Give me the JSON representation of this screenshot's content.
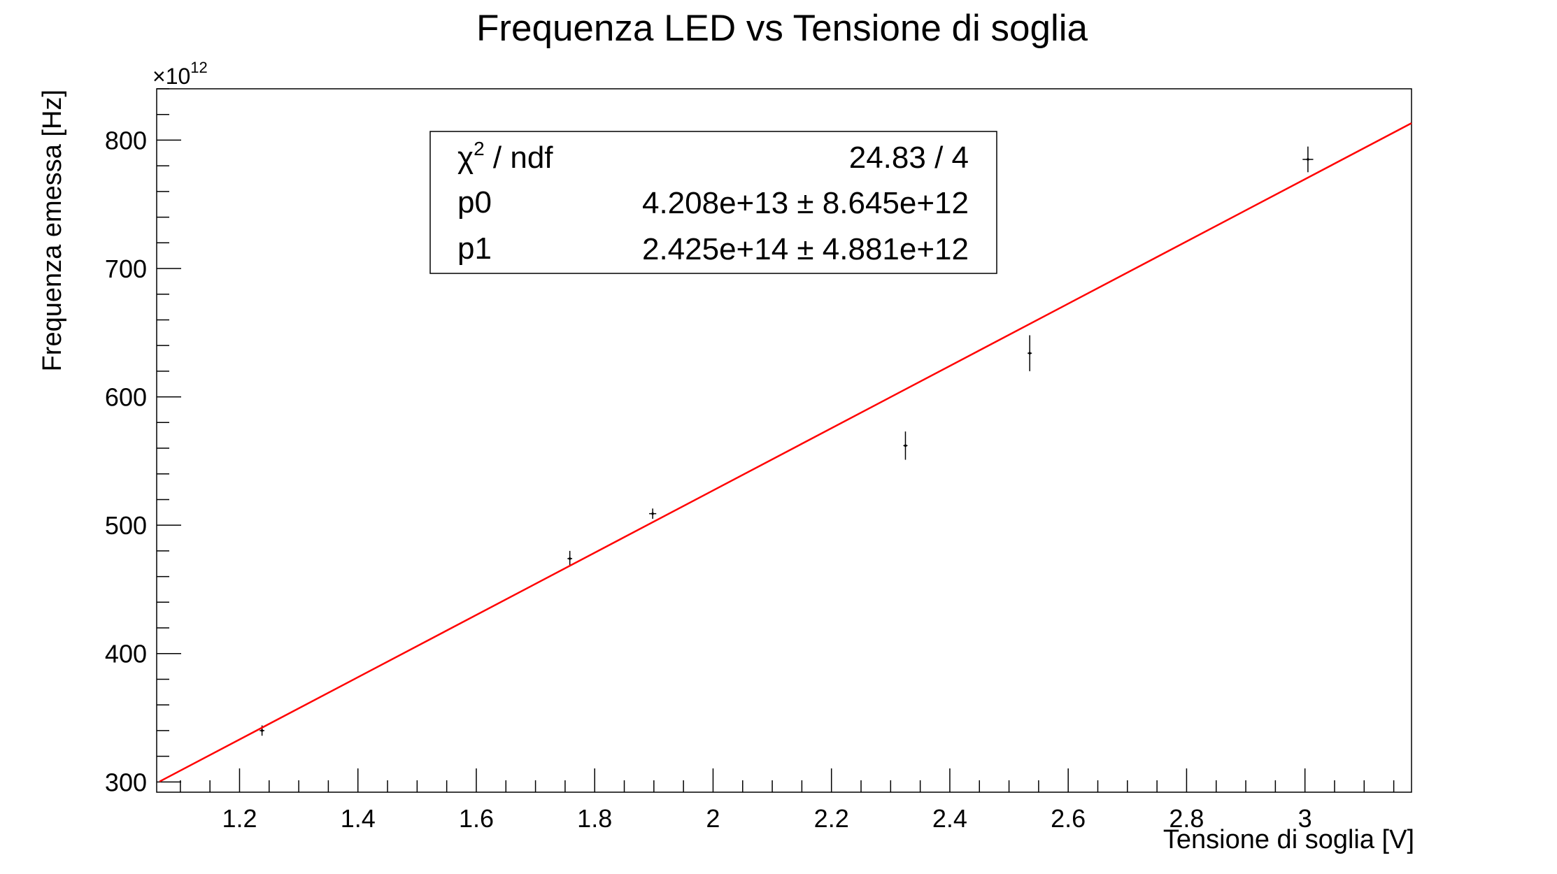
{
  "chart_data": {
    "type": "scatter",
    "title": "Frequenza LED vs Tensione di soglia",
    "xlabel": "Tensione di soglia [V]",
    "ylabel": "Frequenza emessa [Hz]",
    "y_multiplier": {
      "prefix": "×10",
      "exponent": "12"
    },
    "xlim": [
      1.06,
      3.18
    ],
    "ylim": [
      292,
      840
    ],
    "x_ticks_major": [
      1.2,
      1.4,
      1.6,
      1.8,
      2,
      2.2,
      2.4,
      2.6,
      2.8,
      3
    ],
    "x_tick_labels": [
      "1.2",
      "1.4",
      "1.6",
      "1.8",
      "2",
      "2.2",
      "2.4",
      "2.6",
      "2.8",
      "3"
    ],
    "y_ticks_major": [
      300,
      400,
      500,
      600,
      700,
      800
    ],
    "y_tick_labels": [
      "300",
      "400",
      "500",
      "600",
      "700",
      "800"
    ],
    "grid": false,
    "points": [
      {
        "x": 1.238,
        "y": 340,
        "ex": 0.004,
        "ey": 4
      },
      {
        "x": 1.758,
        "y": 474,
        "ex": 0.004,
        "ey": 6
      },
      {
        "x": 1.898,
        "y": 509,
        "ex": 0.006,
        "ey": 4
      },
      {
        "x": 2.325,
        "y": 562,
        "ex": 0.003,
        "ey": 11
      },
      {
        "x": 2.535,
        "y": 634,
        "ex": 0.003,
        "ey": 14
      },
      {
        "x": 3.005,
        "y": 785,
        "ex": 0.009,
        "ey": 10
      }
    ],
    "fit_line": {
      "p0": 42.08,
      "p1": 242.5,
      "x_range": [
        1.065,
        3.18
      ],
      "color": "#ff0000"
    },
    "stats_box": {
      "position": "top-left",
      "rows": [
        {
          "label_main": "χ",
          "label_sup": "2",
          "label_rest": " / ndf",
          "value": "24.83 / 4"
        },
        {
          "label_main": "p0",
          "label_sup": "",
          "label_rest": "",
          "value": "4.208e+13 ± 8.645e+12"
        },
        {
          "label_main": "p1",
          "label_sup": "",
          "label_rest": "",
          "value": "2.425e+14 ± 4.881e+12"
        }
      ]
    },
    "colors": {
      "axes": "#000000",
      "points": "#000000",
      "fit": "#ff0000",
      "background": "#ffffff"
    }
  }
}
